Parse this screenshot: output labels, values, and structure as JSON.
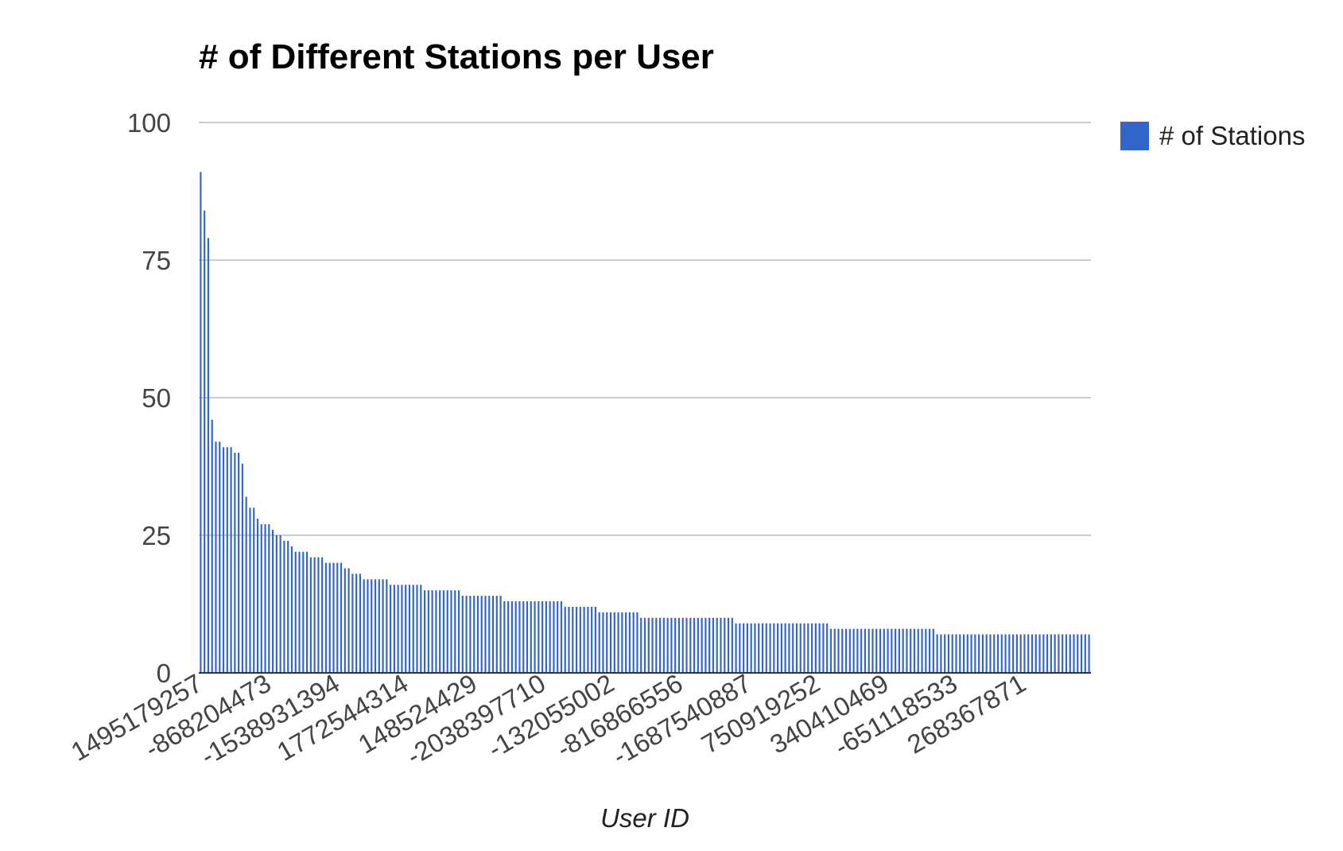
{
  "chart_data": {
    "type": "bar",
    "title": "# of Different Stations per User",
    "xlabel": "User ID",
    "ylabel": "",
    "ylim": [
      0,
      100
    ],
    "y_ticks": [
      0,
      25,
      50,
      75,
      100
    ],
    "grid": true,
    "legend_position": "right",
    "bar_color": "#3366cc",
    "x_tick_labels": [
      "1495179257",
      "-868204473",
      "-1538931394",
      "1772544314",
      "148524429",
      "-2038397710",
      "-132055002",
      "-816866556",
      "-1687540887",
      "750919252",
      "340410469",
      "-651118533",
      "268367871"
    ],
    "series": [
      {
        "name": "# of Stations",
        "values": [
          91,
          84,
          79,
          46,
          42,
          42,
          41,
          41,
          41,
          40,
          40,
          38,
          32,
          30,
          30,
          28,
          27,
          27,
          27,
          26,
          25,
          25,
          24,
          24,
          23,
          22,
          22,
          22,
          22,
          21,
          21,
          21,
          21,
          20,
          20,
          20,
          20,
          20,
          19,
          19,
          18,
          18,
          18,
          17,
          17,
          17,
          17,
          17,
          17,
          17,
          16,
          16,
          16,
          16,
          16,
          16,
          16,
          16,
          16,
          15,
          15,
          15,
          15,
          15,
          15,
          15,
          15,
          15,
          15,
          14,
          14,
          14,
          14,
          14,
          14,
          14,
          14,
          14,
          14,
          14,
          13,
          13,
          13,
          13,
          13,
          13,
          13,
          13,
          13,
          13,
          13,
          13,
          13,
          13,
          13,
          13,
          12,
          12,
          12,
          12,
          12,
          12,
          12,
          12,
          12,
          11,
          11,
          11,
          11,
          11,
          11,
          11,
          11,
          11,
          11,
          11,
          10,
          10,
          10,
          10,
          10,
          10,
          10,
          10,
          10,
          10,
          10,
          10,
          10,
          10,
          10,
          10,
          10,
          10,
          10,
          10,
          10,
          10,
          10,
          10,
          10,
          9,
          9,
          9,
          9,
          9,
          9,
          9,
          9,
          9,
          9,
          9,
          9,
          9,
          9,
          9,
          9,
          9,
          9,
          9,
          9,
          9,
          9,
          9,
          9,
          9,
          8,
          8,
          8,
          8,
          8,
          8,
          8,
          8,
          8,
          8,
          8,
          8,
          8,
          8,
          8,
          8,
          8,
          8,
          8,
          8,
          8,
          8,
          8,
          8,
          8,
          8,
          8,
          8,
          7,
          7,
          7,
          7,
          7,
          7,
          7,
          7,
          7,
          7,
          7,
          7,
          7,
          7,
          7,
          7,
          7,
          7,
          7,
          7,
          7,
          7,
          7,
          7,
          7,
          7,
          7,
          7,
          7,
          7,
          7,
          7,
          7,
          7,
          7,
          7,
          7,
          7,
          7,
          7,
          7
        ]
      }
    ]
  }
}
